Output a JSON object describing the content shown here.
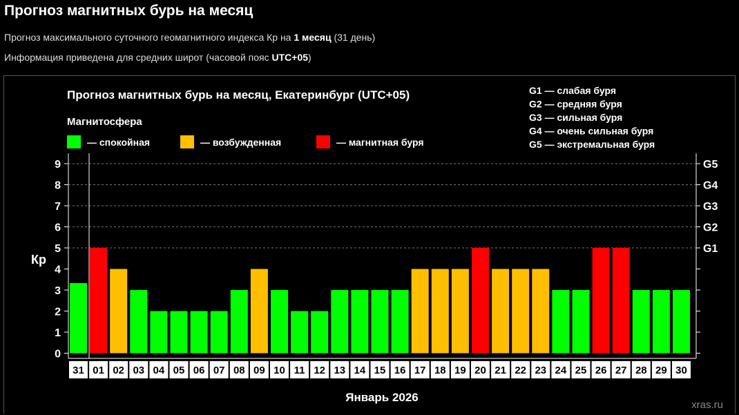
{
  "header": {
    "title": "Прогноз магнитных бурь на месяц",
    "line1_prefix": "Прогноз максимального суточного геомагнитного индекса Кр на ",
    "line1_bold": "1 месяц",
    "line1_suffix": " (31 день)",
    "line2_prefix": "Информация приведена для средних широт (часовой пояс ",
    "line2_bold": "UTC+05",
    "line2_suffix": ")"
  },
  "watermark": "xras.ru",
  "colors": {
    "calm": "#00ff00",
    "excited": "#ffbf00",
    "storm": "#ff0000"
  },
  "chart_data": {
    "type": "bar",
    "title": "Прогноз магнитных бурь на месяц, Екатеринбург (UTC+05)",
    "legend_title": "Магнитосфера",
    "legend": [
      {
        "key": "calm",
        "label": "— спокойная"
      },
      {
        "key": "excited",
        "label": "— возбужденная"
      },
      {
        "key": "storm",
        "label": "— магнитная буря"
      }
    ],
    "g_scale": [
      "G1 — слабая буря",
      "G2 — средняя буря",
      "G3 — сильная буря",
      "G4 — очень сильная буря",
      "G5 — экстремальная буря"
    ],
    "ylabel": "Кр",
    "xlabel": "Январь 2026",
    "ylim": [
      0,
      9
    ],
    "yticks": [
      "0",
      "1",
      "2",
      "3",
      "4",
      "5",
      "6",
      "7",
      "8",
      "9"
    ],
    "right_ticks": [
      {
        "kp": 5,
        "label": "G1"
      },
      {
        "kp": 6,
        "label": "G2"
      },
      {
        "kp": 7,
        "label": "G3"
      },
      {
        "kp": 8,
        "label": "G4"
      },
      {
        "kp": 9,
        "label": "G5"
      }
    ],
    "categories": [
      "31",
      "01",
      "02",
      "03",
      "04",
      "05",
      "06",
      "07",
      "08",
      "09",
      "10",
      "11",
      "12",
      "13",
      "14",
      "15",
      "16",
      "17",
      "18",
      "19",
      "20",
      "21",
      "22",
      "23",
      "24",
      "25",
      "26",
      "27",
      "28",
      "29",
      "30"
    ],
    "values": [
      3.33,
      5,
      4,
      3,
      2,
      2,
      2,
      2,
      3,
      4,
      3,
      2,
      2,
      3,
      3,
      3,
      3,
      4,
      4,
      4,
      5,
      4,
      4,
      4,
      3,
      3,
      5,
      5,
      3,
      3,
      3
    ],
    "levels": [
      "calm",
      "storm",
      "excited",
      "calm",
      "calm",
      "calm",
      "calm",
      "calm",
      "calm",
      "excited",
      "calm",
      "calm",
      "calm",
      "calm",
      "calm",
      "calm",
      "calm",
      "excited",
      "excited",
      "excited",
      "storm",
      "excited",
      "excited",
      "excited",
      "calm",
      "calm",
      "storm",
      "storm",
      "calm",
      "calm",
      "calm"
    ]
  }
}
